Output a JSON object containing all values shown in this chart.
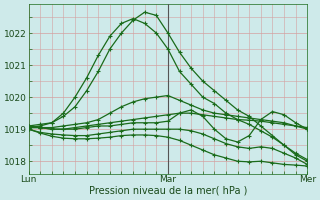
{
  "xlabel": "Pression niveau de la mer( hPa )",
  "bg_color": "#ceeaea",
  "grid_major_color": "#d4a0a0",
  "grid_minor_color": "#d4a0a0",
  "line_color": "#1a6b1a",
  "vline_color": "#555555",
  "ylim": [
    1017.6,
    1022.9
  ],
  "xlim": [
    0,
    48
  ],
  "xticks": [
    0,
    24,
    48
  ],
  "xtick_labels": [
    "Lun",
    "Mar",
    "Mer"
  ],
  "yticks": [
    1018,
    1019,
    1020,
    1021,
    1022
  ],
  "vline_x": 24,
  "series": [
    {
      "x": [
        0,
        2,
        4,
        6,
        8,
        10,
        12,
        14,
        16,
        18,
        20,
        22,
        24,
        26,
        28,
        30,
        32,
        34,
        36,
        38,
        40,
        42,
        44,
        46,
        48
      ],
      "y": [
        1019.1,
        1019.15,
        1019.2,
        1019.4,
        1019.7,
        1020.2,
        1020.8,
        1021.5,
        1022.0,
        1022.4,
        1022.65,
        1022.55,
        1022.0,
        1021.4,
        1020.9,
        1020.5,
        1020.2,
        1019.9,
        1019.6,
        1019.4,
        1019.1,
        1018.8,
        1018.5,
        1018.2,
        1018.0
      ]
    },
    {
      "x": [
        0,
        2,
        4,
        6,
        8,
        10,
        12,
        14,
        16,
        18,
        20,
        22,
        24,
        26,
        28,
        30,
        32,
        34,
        36,
        38,
        40,
        42,
        44,
        46,
        48
      ],
      "y": [
        1019.05,
        1019.1,
        1019.2,
        1019.5,
        1020.0,
        1020.6,
        1021.3,
        1021.9,
        1022.3,
        1022.45,
        1022.3,
        1022.0,
        1021.5,
        1020.8,
        1020.4,
        1020.0,
        1019.8,
        1019.5,
        1019.3,
        1019.15,
        1018.95,
        1018.75,
        1018.5,
        1018.25,
        1018.05
      ]
    },
    {
      "x": [
        0,
        2,
        4,
        6,
        8,
        10,
        12,
        14,
        16,
        18,
        20,
        22,
        24,
        26,
        28,
        30,
        32,
        34,
        36,
        38,
        40,
        42,
        44,
        46,
        48
      ],
      "y": [
        1019.05,
        1019.05,
        1019.05,
        1019.1,
        1019.15,
        1019.2,
        1019.3,
        1019.5,
        1019.7,
        1019.85,
        1019.95,
        1020.0,
        1020.05,
        1019.9,
        1019.75,
        1019.6,
        1019.5,
        1019.45,
        1019.4,
        1019.35,
        1019.3,
        1019.25,
        1019.2,
        1019.1,
        1019.0
      ]
    },
    {
      "x": [
        0,
        2,
        4,
        6,
        8,
        10,
        12,
        14,
        16,
        18,
        20,
        22,
        24,
        26,
        28,
        30,
        32,
        34,
        36,
        38,
        40,
        42,
        44,
        46,
        48
      ],
      "y": [
        1019.1,
        1019.05,
        1019.0,
        1019.0,
        1019.0,
        1019.05,
        1019.1,
        1019.1,
        1019.15,
        1019.2,
        1019.2,
        1019.2,
        1019.25,
        1019.5,
        1019.6,
        1019.4,
        1019.0,
        1018.7,
        1018.6,
        1018.8,
        1019.3,
        1019.55,
        1019.45,
        1019.2,
        1019.0
      ]
    },
    {
      "x": [
        0,
        2,
        4,
        6,
        8,
        10,
        12,
        14,
        16,
        18,
        20,
        22,
        24,
        26,
        28,
        30,
        32,
        34,
        36,
        38,
        40,
        42,
        44,
        46,
        48
      ],
      "y": [
        1019.0,
        1018.9,
        1018.85,
        1018.82,
        1018.8,
        1018.8,
        1018.85,
        1018.9,
        1018.95,
        1019.0,
        1019.0,
        1019.0,
        1019.0,
        1019.0,
        1018.95,
        1018.85,
        1018.7,
        1018.55,
        1018.45,
        1018.4,
        1018.45,
        1018.4,
        1018.25,
        1018.1,
        1017.9
      ]
    },
    {
      "x": [
        0,
        2,
        4,
        6,
        8,
        10,
        12,
        14,
        16,
        18,
        20,
        22,
        24,
        26,
        28,
        30,
        32,
        34,
        36,
        38,
        40,
        42,
        44,
        46,
        48
      ],
      "y": [
        1019.0,
        1018.88,
        1018.78,
        1018.72,
        1018.7,
        1018.7,
        1018.72,
        1018.75,
        1018.8,
        1018.82,
        1018.82,
        1018.8,
        1018.75,
        1018.65,
        1018.5,
        1018.35,
        1018.2,
        1018.1,
        1018.0,
        1017.98,
        1018.0,
        1017.95,
        1017.9,
        1017.88,
        1017.85
      ]
    },
    {
      "x": [
        0,
        2,
        4,
        6,
        8,
        10,
        12,
        14,
        16,
        18,
        20,
        22,
        24,
        26,
        28,
        30,
        32,
        34,
        36,
        38,
        40,
        42,
        44,
        46,
        48
      ],
      "y": [
        1019.05,
        1019.05,
        1019.0,
        1019.0,
        1019.05,
        1019.1,
        1019.15,
        1019.2,
        1019.25,
        1019.3,
        1019.35,
        1019.4,
        1019.45,
        1019.5,
        1019.5,
        1019.45,
        1019.4,
        1019.35,
        1019.3,
        1019.28,
        1019.25,
        1019.2,
        1019.15,
        1019.1,
        1019.05
      ]
    }
  ]
}
